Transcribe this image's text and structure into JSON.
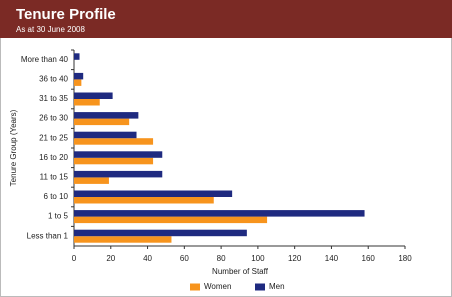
{
  "chart_data": {
    "type": "hbar",
    "title": "Tenure Profile",
    "subtitle": "As at 30 June 2008",
    "x_label": "Number of Staff",
    "y_label": "Tenure Group (Years)",
    "categories": [
      "More than 40",
      "36 to 40",
      "31 to 35",
      "26 to 30",
      "21 to 25",
      "16 to 20",
      "11 to 15",
      "6 to 10",
      "1 to 5",
      "Less than 1"
    ],
    "series": [
      {
        "name": "Women",
        "color": "#f7941d",
        "values": [
          0,
          4,
          14,
          30,
          43,
          43,
          19,
          76,
          105,
          53
        ]
      },
      {
        "name": "Men",
        "color": "#1f2a80",
        "values": [
          3,
          5,
          21,
          35,
          34,
          48,
          48,
          86,
          158,
          94
        ]
      }
    ],
    "xlim": [
      0,
      180
    ],
    "xticks": [
      0,
      20,
      40,
      60,
      80,
      100,
      120,
      140,
      160,
      180
    ],
    "legend": "bottom"
  }
}
